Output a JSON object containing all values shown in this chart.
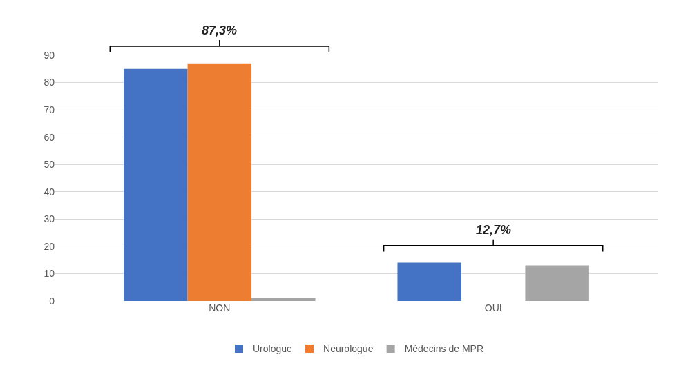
{
  "chart_data": {
    "type": "bar",
    "categories": [
      "NON",
      "OUI"
    ],
    "series": [
      {
        "name": "Urologue",
        "color": "#4472c4",
        "values": [
          85,
          14
        ]
      },
      {
        "name": "Neurologue",
        "color": "#ed7d31",
        "values": [
          87,
          0
        ]
      },
      {
        "name": "Médecins de MPR",
        "color": "#a5a5a5",
        "values": [
          1,
          13
        ]
      }
    ],
    "annotations": [
      "87,3%",
      "12,7%"
    ],
    "ylim": [
      0,
      90
    ],
    "yticks": [
      0,
      10,
      20,
      30,
      40,
      50,
      60,
      70,
      80,
      90
    ],
    "grid": "y",
    "legend": "bottom"
  }
}
